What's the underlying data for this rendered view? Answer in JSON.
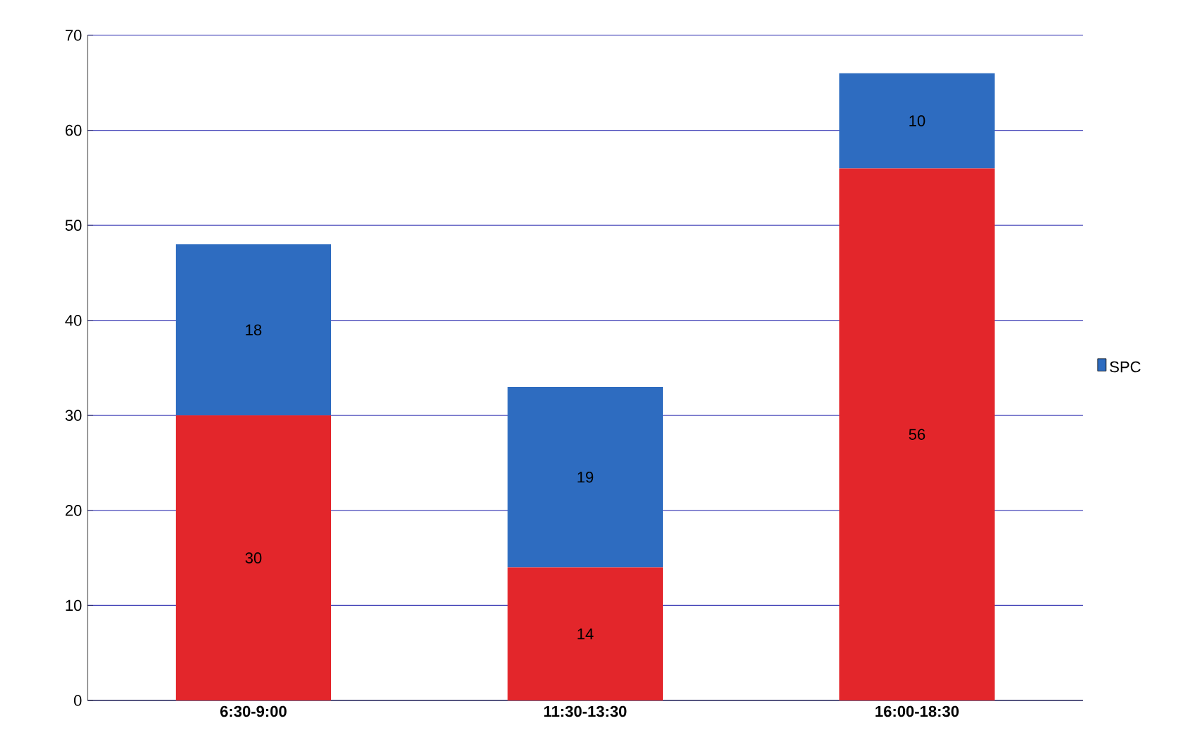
{
  "chart_data": {
    "type": "bar",
    "stacked": true,
    "categories": [
      "6:30-9:00",
      "11:30-13:30",
      "16:00-18:30"
    ],
    "series": [
      {
        "color": "#e3262b",
        "values": [
          30,
          14,
          56
        ]
      },
      {
        "name": "SPC",
        "color": "#2e6cc0",
        "values": [
          18,
          19,
          10
        ]
      }
    ],
    "ylim": [
      0,
      70
    ],
    "yticks": [
      0,
      10,
      20,
      30,
      40,
      50,
      60,
      70
    ],
    "grid": "y",
    "legend": "right",
    "data_labels": true
  }
}
